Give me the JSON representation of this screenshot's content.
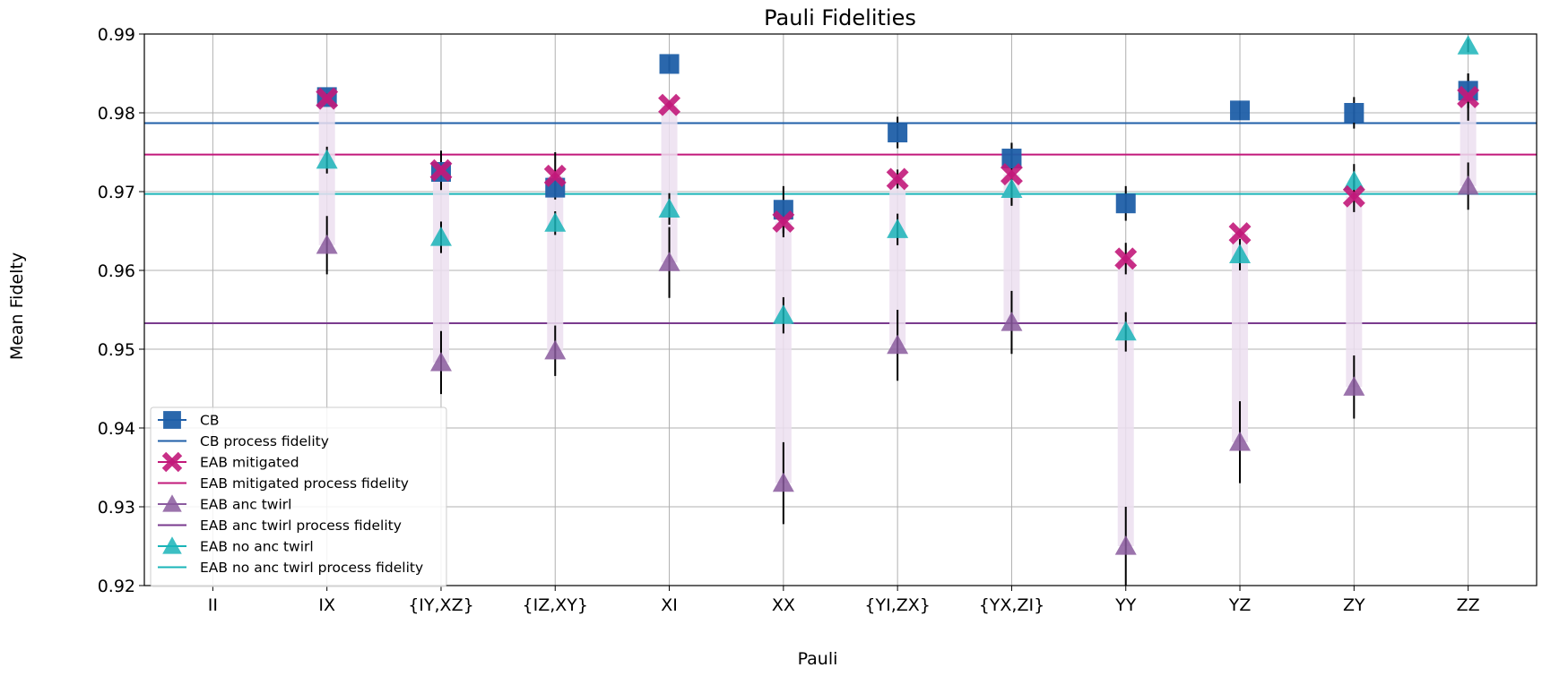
{
  "chart_data": {
    "type": "scatter",
    "title": "Pauli Fidelities",
    "xlabel": "Pauli",
    "ylabel": "Mean Fidelty",
    "ylim": [
      0.92,
      0.99
    ],
    "yticks": [
      "0.92",
      "0.93",
      "0.94",
      "0.95",
      "0.96",
      "0.97",
      "0.98",
      "0.99"
    ],
    "categories": [
      "II",
      "IX",
      "{IY,XZ}",
      "{IZ,XY}",
      "XI",
      "XX",
      "{YI,ZX}",
      "{YX,ZI}",
      "YY",
      "YZ",
      "ZY",
      "ZZ"
    ],
    "grid": true,
    "legend_position": "lower-left",
    "series": [
      {
        "name": "CB",
        "marker": "square",
        "color": "#1f5fa8",
        "values": [
          null,
          0.982,
          0.9725,
          0.9705,
          0.9862,
          0.9677,
          0.9775,
          0.9742,
          0.9685,
          0.9803,
          0.98,
          0.9828
        ],
        "errors": [
          null,
          0.0005,
          0.0005,
          0.0005,
          0.001,
          0.003,
          0.002,
          0.002,
          0.0022,
          0.0012,
          0.002,
          0.0022
        ]
      },
      {
        "name": "EAB mitigated",
        "marker": "x",
        "color": "#c2187a",
        "values": [
          null,
          0.9818,
          0.9727,
          0.972,
          0.981,
          0.9662,
          0.9716,
          0.9722,
          0.9615,
          0.9647,
          0.9694,
          0.982
        ],
        "errors": [
          null,
          0.0005,
          0.0025,
          0.003,
          0.0005,
          0.002,
          0.0012,
          0.004,
          0.002,
          0.0005,
          0.002,
          0.003
        ]
      },
      {
        "name": "EAB anc twirl",
        "marker": "triangle",
        "color": "#8a5a9e",
        "values": [
          null,
          0.9632,
          0.9483,
          0.9498,
          0.961,
          0.933,
          0.9505,
          0.9534,
          0.925,
          0.9382,
          0.9452,
          0.9707
        ],
        "errors": [
          null,
          0.0037,
          0.004,
          0.0032,
          0.0045,
          0.0052,
          0.0045,
          0.004,
          0.005,
          0.0052,
          0.004,
          0.003
        ]
      },
      {
        "name": "EAB no anc twirl",
        "marker": "triangle",
        "color": "#1ab4b8",
        "values": [
          null,
          0.974,
          0.9642,
          0.966,
          0.9678,
          0.9543,
          0.9652,
          0.9703,
          0.9522,
          0.962,
          0.9713,
          0.9885
        ],
        "errors": [
          null,
          0.0017,
          0.002,
          0.0015,
          0.002,
          0.0023,
          0.002,
          0.002,
          0.0025,
          0.002,
          0.0022,
          0.0008
        ]
      }
    ],
    "process_fidelities": [
      {
        "name": "CB process fidelity",
        "value": 0.9787,
        "color": "#1f5fa8"
      },
      {
        "name": "EAB mitigated process fidelity",
        "value": 0.9747,
        "color": "#c2187a"
      },
      {
        "name": "EAB anc twirl process fidelity",
        "value": 0.9533,
        "color": "#7a3a8e"
      },
      {
        "name": "EAB no anc twirl process fidelity",
        "value": 0.9697,
        "color": "#1ab4b8"
      }
    ],
    "shaded_band_color": "#ecdff0",
    "legend_entries": [
      {
        "label": "CB",
        "kind": "marker-square",
        "color": "#1f5fa8"
      },
      {
        "label": "CB process fidelity",
        "kind": "line",
        "color": "#1f5fa8"
      },
      {
        "label": "EAB mitigated",
        "kind": "marker-x",
        "color": "#c2187a"
      },
      {
        "label": "EAB mitigated process fidelity",
        "kind": "line",
        "color": "#c2187a"
      },
      {
        "label": "EAB anc twirl",
        "kind": "marker-triangle",
        "color": "#8a5a9e"
      },
      {
        "label": "EAB anc twirl process fidelity",
        "kind": "line",
        "color": "#7a3a8e"
      },
      {
        "label": "EAB no anc twirl",
        "kind": "marker-triangle",
        "color": "#1ab4b8"
      },
      {
        "label": "EAB no anc twirl process fidelity",
        "kind": "line",
        "color": "#1ab4b8"
      }
    ]
  }
}
